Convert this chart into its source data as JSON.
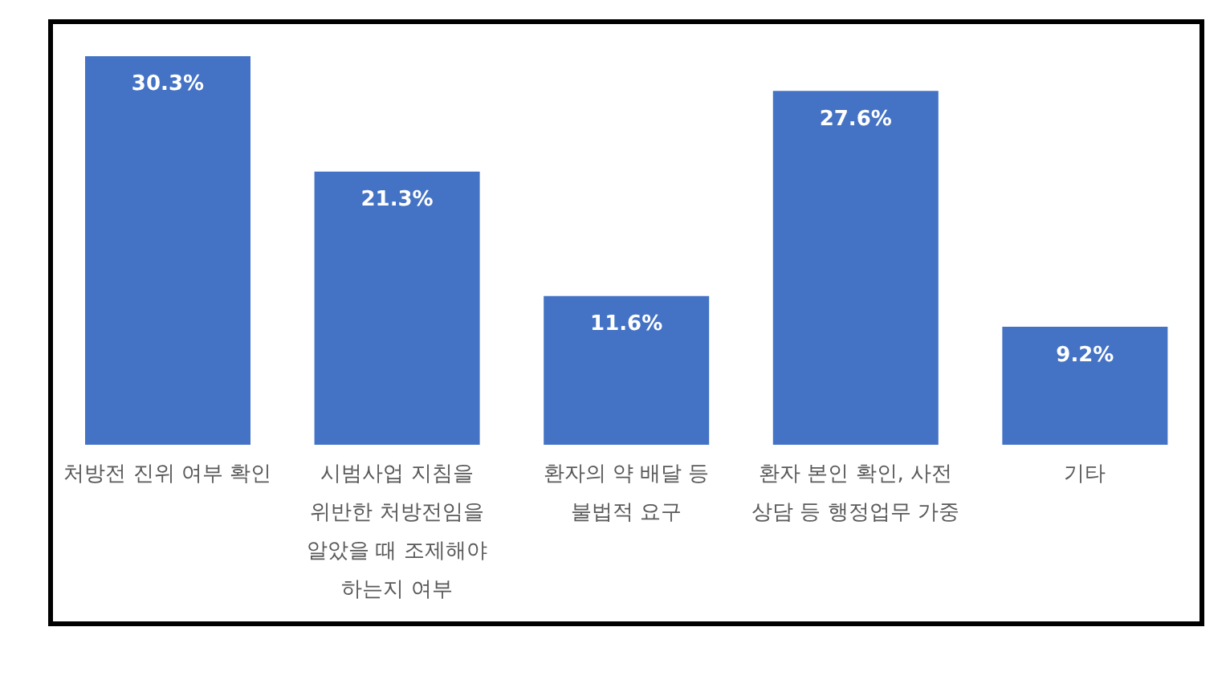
{
  "chart_data": {
    "type": "bar",
    "categories": [
      "처방전 진위 여부 확인",
      "시범사업 지침을 위반한 처방전임을 알았을 때 조제해야 하는지 여부",
      "환자의 약 배달 등 불법적 요구",
      "환자 본인 확인, 사전 상담 등 행정업무 가중",
      "기타"
    ],
    "values": [
      30.3,
      21.3,
      11.6,
      27.6,
      9.2
    ],
    "value_labels": [
      "30.3%",
      "21.3%",
      "11.6%",
      "27.6%",
      "9.2%"
    ],
    "color": "#4472c4"
  }
}
